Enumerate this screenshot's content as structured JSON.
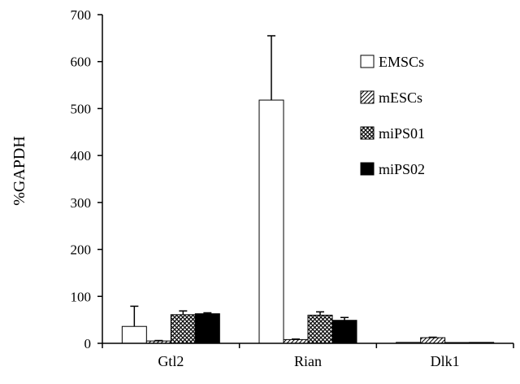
{
  "chart_data": {
    "type": "bar",
    "title": "",
    "xlabel": "",
    "ylabel": "%GAPDH",
    "ylim": [
      0,
      700
    ],
    "yticks": [
      0,
      100,
      200,
      300,
      400,
      500,
      600,
      700
    ],
    "categories": [
      "Gtl2",
      "Rian",
      "Dlk1"
    ],
    "grid": false,
    "legend_position": "top-right",
    "series": [
      {
        "name": "EMSCs",
        "pattern": "empty",
        "values": [
          36,
          518,
          2
        ],
        "errors": [
          43,
          137,
          0
        ]
      },
      {
        "name": "mESCs",
        "pattern": "diagonal",
        "values": [
          5,
          8,
          12
        ],
        "errors": [
          1,
          1,
          1
        ]
      },
      {
        "name": "miPS01",
        "pattern": "crosshatch",
        "values": [
          61,
          60,
          1
        ],
        "errors": [
          8,
          7,
          0
        ]
      },
      {
        "name": "miPS02",
        "pattern": "solid",
        "values": [
          63,
          49,
          2
        ],
        "errors": [
          2,
          6,
          0
        ]
      }
    ]
  }
}
